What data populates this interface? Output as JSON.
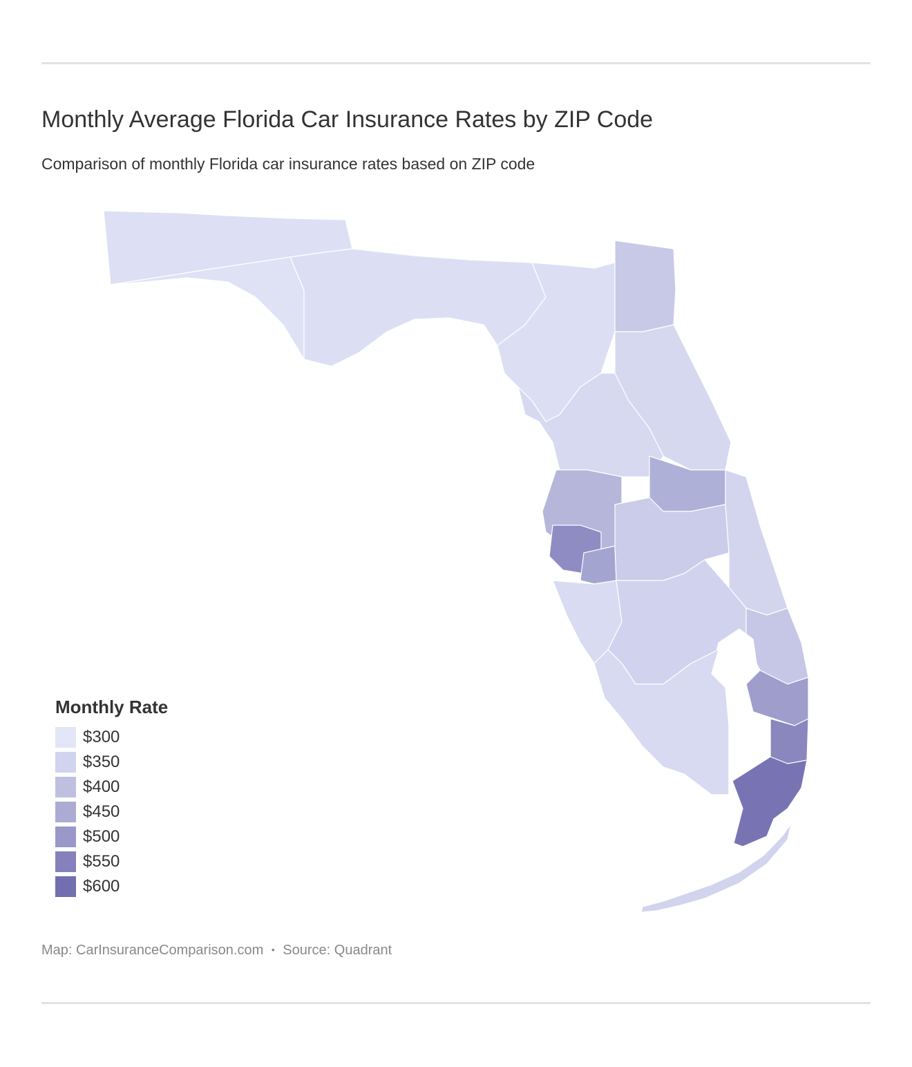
{
  "header": {
    "title": "Monthly Average Florida Car Insurance Rates by ZIP Code",
    "subtitle": "Comparison of monthly Florida car insurance rates based on ZIP code"
  },
  "map": {
    "type": "choropleth",
    "region_labels": []
  },
  "legend": {
    "title": "Monthly Rate",
    "items": [
      {
        "label": "$300",
        "color": "#e3e6f7"
      },
      {
        "label": "$350",
        "color": "#d2d3ee"
      },
      {
        "label": "$400",
        "color": "#bfbfe0"
      },
      {
        "label": "$450",
        "color": "#ababd4"
      },
      {
        "label": "$500",
        "color": "#9a98c8"
      },
      {
        "label": "$550",
        "color": "#8681bc"
      },
      {
        "label": "$600",
        "color": "#726eb0"
      }
    ]
  },
  "footer": {
    "map_credit": "Map: CarInsuranceComparison.com",
    "separator": "•",
    "source": "Source: Quadrant"
  }
}
